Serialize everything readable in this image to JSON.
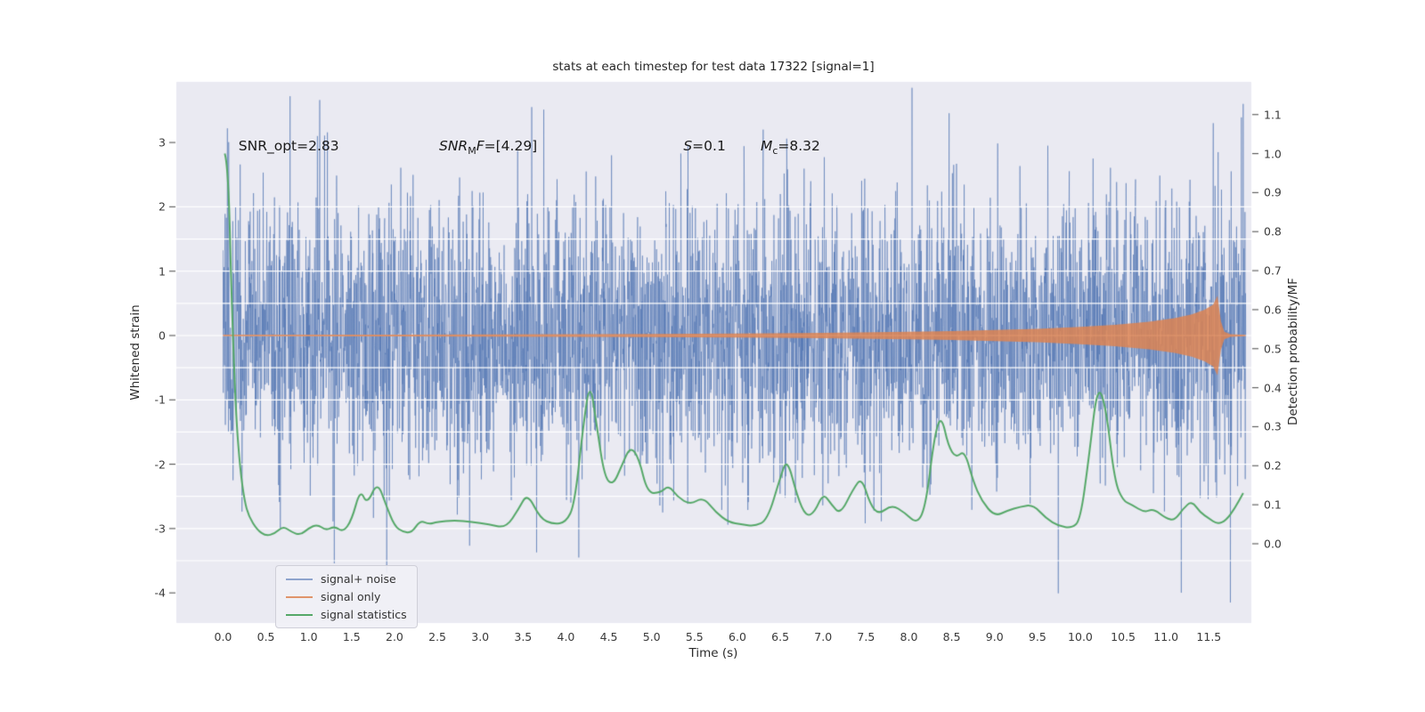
{
  "chart_data": {
    "type": "line",
    "title": "stats at each timestep for test data 17322 [signal=1]",
    "xlabel": "Time (s)",
    "ylabel_left": "Whitened strain",
    "ylabel_right": "Detection probability/MF",
    "x_range": [
      -0.545,
      11.995
    ],
    "y_left_range": [
      -4.468,
      3.942
    ],
    "y_right_range": [
      -0.2031,
      1.1838
    ],
    "plot_bg_color": "#eaeaf2",
    "grid_color": "#ffffff",
    "grid_values_left_axis": [
      -3.5,
      -3,
      -2.5,
      -2,
      -1.5,
      -1,
      -0.5,
      0,
      0.5,
      1,
      1.5,
      2
    ],
    "x_tick_values": [
      0,
      0.5,
      1,
      1.5,
      2,
      2.5,
      3,
      3.5,
      4,
      4.5,
      5,
      5.5,
      6,
      6.5,
      7,
      7.5,
      8,
      8.5,
      9,
      9.5,
      10,
      10.5,
      11,
      11.5
    ],
    "x_tick_labels": [
      "0.0",
      "0.5",
      "1.0",
      "1.5",
      "2.0",
      "2.5",
      "3.0",
      "3.5",
      "4.0",
      "4.5",
      "5.0",
      "5.5",
      "6.0",
      "6.5",
      "7.0",
      "7.5",
      "8.0",
      "8.5",
      "9.0",
      "9.5",
      "10.0",
      "10.5",
      "11.0",
      "11.5"
    ],
    "y_left_tick_values": [
      3,
      2,
      1,
      0,
      -1,
      -2,
      -3,
      -4
    ],
    "y_left_tick_labels": [
      "3",
      "2",
      "1",
      "0",
      "-1",
      "-2",
      "-3",
      "-4"
    ],
    "y_right_tick_values": [
      1.1,
      1.0,
      0.9,
      0.8,
      0.7,
      0.6,
      0.5,
      0.4,
      0.3,
      0.2,
      0.1,
      0.0
    ],
    "y_right_tick_labels": [
      "1.1",
      "1.0",
      "0.9",
      "0.8",
      "0.7",
      "0.6",
      "0.5",
      "0.4",
      "0.3",
      "0.2",
      "0.1",
      "0.0"
    ],
    "series": [
      {
        "name": "signal+ noise",
        "type": "noise",
        "axis": "left",
        "color": "rgba(76,114,176,0.60)",
        "line_width": 0.9,
        "std": 1.05,
        "seed": 77,
        "n": 4000,
        "t_start": 0.0,
        "t_end": 11.93,
        "notable_extremes": [
          [
            0.05,
            3.22
          ],
          [
            1.1,
            3.1
          ],
          [
            3.6,
            3.55
          ],
          [
            4.15,
            -3.45
          ],
          [
            6.3,
            3.2
          ],
          [
            9.62,
            2.95
          ],
          [
            10.15,
            2.75
          ],
          [
            11.55,
            3.3
          ],
          [
            11.75,
            -4.15
          ],
          [
            11.9,
            3.6
          ]
        ]
      },
      {
        "name": "signal only",
        "type": "envelope",
        "axis": "left",
        "color": "rgba(221,132,82,0.85)",
        "points": [
          [
            0.0,
            0.012
          ],
          [
            2.0,
            0.015
          ],
          [
            4.0,
            0.02
          ],
          [
            5.0,
            0.025
          ],
          [
            6.0,
            0.032
          ],
          [
            7.0,
            0.042
          ],
          [
            8.0,
            0.058
          ],
          [
            8.5,
            0.07
          ],
          [
            9.0,
            0.085
          ],
          [
            9.5,
            0.105
          ],
          [
            10.0,
            0.135
          ],
          [
            10.4,
            0.165
          ],
          [
            10.8,
            0.215
          ],
          [
            11.1,
            0.27
          ],
          [
            11.3,
            0.33
          ],
          [
            11.45,
            0.4
          ],
          [
            11.55,
            0.48
          ],
          [
            11.6,
            0.62
          ],
          [
            11.64,
            0.22
          ],
          [
            11.68,
            0.06
          ],
          [
            11.75,
            0.02
          ],
          [
            11.93,
            0.01
          ]
        ]
      },
      {
        "name": "signal statistics",
        "type": "line",
        "axis": "right",
        "color": "#55a868",
        "line_width": 2,
        "points": [
          [
            0.02,
            1.0
          ],
          [
            0.06,
            0.97
          ],
          [
            0.1,
            0.62
          ],
          [
            0.15,
            0.33
          ],
          [
            0.2,
            0.19
          ],
          [
            0.25,
            0.11
          ],
          [
            0.3,
            0.07
          ],
          [
            0.4,
            0.035
          ],
          [
            0.5,
            0.02
          ],
          [
            0.6,
            0.026
          ],
          [
            0.7,
            0.045
          ],
          [
            0.8,
            0.03
          ],
          [
            0.9,
            0.022
          ],
          [
            1.0,
            0.04
          ],
          [
            1.1,
            0.05
          ],
          [
            1.2,
            0.034
          ],
          [
            1.3,
            0.045
          ],
          [
            1.4,
            0.03
          ],
          [
            1.5,
            0.06
          ],
          [
            1.6,
            0.14
          ],
          [
            1.68,
            0.1
          ],
          [
            1.8,
            0.16
          ],
          [
            1.9,
            0.1
          ],
          [
            2.0,
            0.045
          ],
          [
            2.1,
            0.03
          ],
          [
            2.2,
            0.028
          ],
          [
            2.3,
            0.06
          ],
          [
            2.4,
            0.05
          ],
          [
            2.5,
            0.056
          ],
          [
            2.7,
            0.06
          ],
          [
            2.9,
            0.056
          ],
          [
            3.1,
            0.05
          ],
          [
            3.3,
            0.04
          ],
          [
            3.45,
            0.09
          ],
          [
            3.55,
            0.13
          ],
          [
            3.7,
            0.065
          ],
          [
            3.85,
            0.05
          ],
          [
            4.0,
            0.055
          ],
          [
            4.1,
            0.1
          ],
          [
            4.2,
            0.3
          ],
          [
            4.28,
            0.42
          ],
          [
            4.36,
            0.3
          ],
          [
            4.45,
            0.17
          ],
          [
            4.55,
            0.15
          ],
          [
            4.65,
            0.2
          ],
          [
            4.75,
            0.25
          ],
          [
            4.85,
            0.22
          ],
          [
            4.95,
            0.13
          ],
          [
            5.1,
            0.13
          ],
          [
            5.2,
            0.15
          ],
          [
            5.3,
            0.12
          ],
          [
            5.45,
            0.1
          ],
          [
            5.6,
            0.12
          ],
          [
            5.75,
            0.08
          ],
          [
            5.9,
            0.055
          ],
          [
            6.05,
            0.05
          ],
          [
            6.2,
            0.045
          ],
          [
            6.35,
            0.06
          ],
          [
            6.5,
            0.17
          ],
          [
            6.58,
            0.22
          ],
          [
            6.7,
            0.12
          ],
          [
            6.8,
            0.07
          ],
          [
            6.9,
            0.08
          ],
          [
            7.0,
            0.13
          ],
          [
            7.1,
            0.1
          ],
          [
            7.2,
            0.075
          ],
          [
            7.35,
            0.14
          ],
          [
            7.45,
            0.17
          ],
          [
            7.55,
            0.1
          ],
          [
            7.65,
            0.075
          ],
          [
            7.8,
            0.1
          ],
          [
            7.95,
            0.08
          ],
          [
            8.1,
            0.05
          ],
          [
            8.2,
            0.1
          ],
          [
            8.3,
            0.28
          ],
          [
            8.38,
            0.33
          ],
          [
            8.46,
            0.25
          ],
          [
            8.55,
            0.22
          ],
          [
            8.65,
            0.24
          ],
          [
            8.75,
            0.16
          ],
          [
            8.85,
            0.11
          ],
          [
            9.0,
            0.07
          ],
          [
            9.15,
            0.085
          ],
          [
            9.3,
            0.095
          ],
          [
            9.45,
            0.1
          ],
          [
            9.6,
            0.065
          ],
          [
            9.75,
            0.045
          ],
          [
            9.9,
            0.04
          ],
          [
            10.0,
            0.06
          ],
          [
            10.1,
            0.22
          ],
          [
            10.2,
            0.41
          ],
          [
            10.3,
            0.35
          ],
          [
            10.4,
            0.16
          ],
          [
            10.5,
            0.11
          ],
          [
            10.6,
            0.1
          ],
          [
            10.75,
            0.08
          ],
          [
            10.85,
            0.09
          ],
          [
            11.0,
            0.065
          ],
          [
            11.1,
            0.06
          ],
          [
            11.2,
            0.09
          ],
          [
            11.3,
            0.11
          ],
          [
            11.4,
            0.08
          ],
          [
            11.5,
            0.065
          ],
          [
            11.6,
            0.05
          ],
          [
            11.7,
            0.06
          ],
          [
            11.8,
            0.09
          ],
          [
            11.9,
            0.13
          ]
        ]
      }
    ],
    "annotations": [
      {
        "text": "SNR_opt=2.83",
        "t": 0.18,
        "v": 2.85
      },
      {
        "b": "SNR",
        "sub": "M",
        "b2": "F",
        "rest": "=[4.29]",
        "t": 2.52,
        "v": 2.85
      },
      {
        "b": "S",
        "sub": "",
        "b2": "",
        "rest": "=0.1",
        "t": 5.37,
        "v": 2.85
      },
      {
        "b": "M",
        "sub": "c",
        "b2": "",
        "rest": "=8.32",
        "t": 6.27,
        "v": 2.85
      }
    ],
    "legend": {
      "position": "lower left",
      "items": [
        {
          "label": "signal+ noise",
          "color": "rgba(76,114,176,0.6)"
        },
        {
          "label": "signal only",
          "color": "rgba(221,132,82,0.85)"
        },
        {
          "label": "signal statistics",
          "color": "#55a868"
        }
      ]
    }
  }
}
